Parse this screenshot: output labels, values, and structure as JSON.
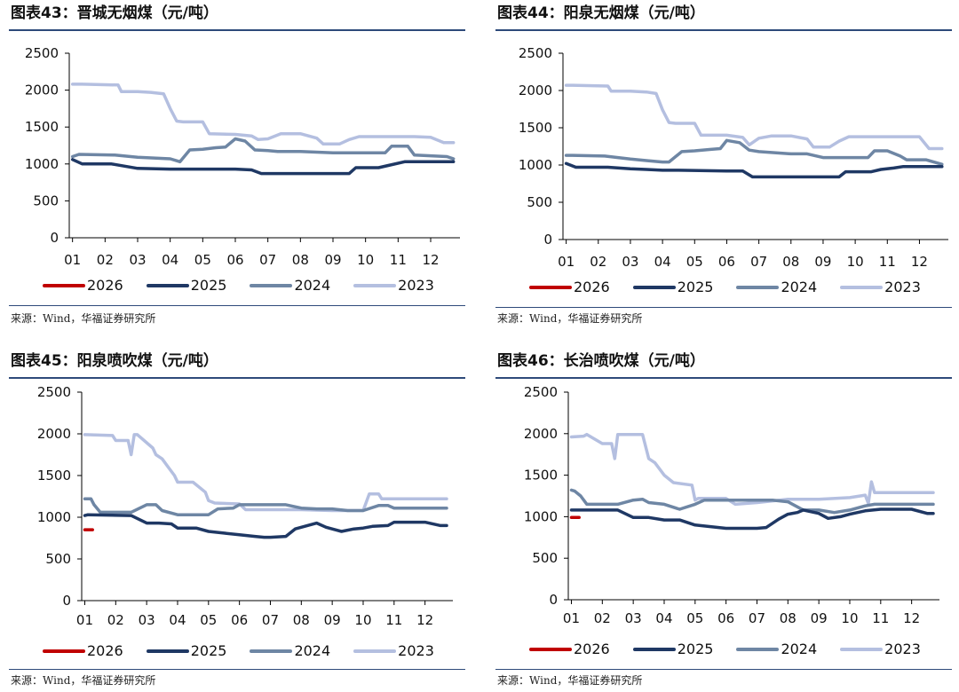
{
  "source": "来源：Wind，华福证券研究所",
  "colors": {
    "2026": "#c00000",
    "2025": "#1f3864",
    "2024": "#6e86a4",
    "2023": "#b4bfe0",
    "rule": "#2e4a7a"
  },
  "chart_data": [
    {
      "type": "line",
      "title": "图表43：晋城无烟煤（元/吨）",
      "xlabel": "",
      "ylabel": "",
      "categories": [
        "01",
        "02",
        "03",
        "04",
        "05",
        "06",
        "07",
        "08",
        "09",
        "10",
        "11",
        "12"
      ],
      "yticks": [
        "0",
        "500",
        "1000",
        "1500",
        "2000",
        "2500"
      ],
      "ylim": [
        0,
        2500
      ],
      "xlim": [
        0.9,
        12.9
      ],
      "legend": "bottom",
      "series": [
        {
          "name": "2026",
          "x": [],
          "values": []
        },
        {
          "name": "2025",
          "x": [
            1.0,
            1.3,
            1.45,
            2.2,
            3.0,
            4.0,
            4.5,
            5.0,
            5.5,
            6.0,
            6.5,
            6.8,
            7.0,
            8.0,
            9.0,
            9.5,
            9.7,
            10.4,
            10.7,
            11.2,
            11.5,
            12.5,
            12.7
          ],
          "values": [
            1060,
            1000,
            1000,
            1000,
            940,
            930,
            930,
            930,
            930,
            930,
            920,
            870,
            870,
            870,
            870,
            870,
            950,
            950,
            980,
            1030,
            1030,
            1030,
            1030
          ]
        },
        {
          "name": "2024",
          "x": [
            1.0,
            1.2,
            2.3,
            3.0,
            3.5,
            4.0,
            4.3,
            4.6,
            5.0,
            5.4,
            5.7,
            6.0,
            6.3,
            6.6,
            7.0,
            7.3,
            8.0,
            8.5,
            9.0,
            9.5,
            10.0,
            10.6,
            10.8,
            11.3,
            11.5,
            12.0,
            12.5,
            12.7
          ],
          "values": [
            1100,
            1130,
            1120,
            1090,
            1080,
            1070,
            1030,
            1190,
            1200,
            1220,
            1230,
            1340,
            1310,
            1190,
            1180,
            1170,
            1170,
            1160,
            1150,
            1150,
            1150,
            1150,
            1240,
            1240,
            1120,
            1110,
            1100,
            1070
          ]
        },
        {
          "name": "2023",
          "x": [
            1.0,
            1.3,
            2.4,
            2.5,
            3.0,
            3.4,
            3.8,
            4.0,
            4.2,
            4.4,
            5.0,
            5.2,
            6.0,
            6.5,
            6.7,
            7.0,
            7.4,
            8.0,
            8.5,
            8.7,
            9.2,
            9.5,
            9.8,
            10.0,
            11.0,
            11.5,
            12.0,
            12.4,
            12.7
          ],
          "values": [
            2080,
            2080,
            2070,
            1980,
            1980,
            1970,
            1950,
            1750,
            1580,
            1570,
            1570,
            1410,
            1400,
            1380,
            1330,
            1340,
            1410,
            1410,
            1350,
            1270,
            1270,
            1330,
            1370,
            1370,
            1370,
            1370,
            1360,
            1290,
            1290
          ]
        }
      ]
    },
    {
      "type": "line",
      "title": "图表44：阳泉无烟煤（元/吨）",
      "xlabel": "",
      "ylabel": "",
      "categories": [
        "01",
        "02",
        "03",
        "04",
        "05",
        "06",
        "07",
        "08",
        "09",
        "10",
        "11",
        "12"
      ],
      "yticks": [
        "0",
        "500",
        "1000",
        "1500",
        "2000",
        "2500"
      ],
      "ylim": [
        0,
        2500
      ],
      "xlim": [
        0.9,
        12.9
      ],
      "legend": "bottom",
      "series": [
        {
          "name": "2026",
          "x": [],
          "values": []
        },
        {
          "name": "2025",
          "x": [
            1.0,
            1.3,
            2.3,
            3.0,
            3.5,
            4.0,
            4.5,
            6.0,
            6.5,
            6.8,
            7.0,
            8.0,
            9.0,
            9.5,
            9.7,
            10.5,
            10.8,
            11.2,
            11.5,
            12.5,
            12.7
          ],
          "values": [
            1020,
            970,
            970,
            950,
            940,
            930,
            930,
            920,
            920,
            840,
            840,
            840,
            840,
            840,
            910,
            910,
            940,
            960,
            980,
            980,
            980
          ]
        },
        {
          "name": "2024",
          "x": [
            1.0,
            1.2,
            2.2,
            3.0,
            3.5,
            4.0,
            4.2,
            4.6,
            5.0,
            5.5,
            5.8,
            6.0,
            6.4,
            6.7,
            7.0,
            8.0,
            8.5,
            9.0,
            9.5,
            10.0,
            10.4,
            10.6,
            11.0,
            11.4,
            11.6,
            12.2,
            12.7
          ],
          "values": [
            1130,
            1130,
            1120,
            1080,
            1060,
            1040,
            1040,
            1180,
            1190,
            1210,
            1220,
            1330,
            1300,
            1200,
            1180,
            1150,
            1150,
            1100,
            1100,
            1100,
            1100,
            1190,
            1190,
            1120,
            1070,
            1070,
            1010
          ]
        },
        {
          "name": "2023",
          "x": [
            1.0,
            1.2,
            2.3,
            2.4,
            3.0,
            3.5,
            3.8,
            4.0,
            4.2,
            4.4,
            5.0,
            5.2,
            6.0,
            6.5,
            6.7,
            7.0,
            7.4,
            8.0,
            8.5,
            8.7,
            9.2,
            9.5,
            9.8,
            10.0,
            11.0,
            11.5,
            12.0,
            12.3,
            12.7
          ],
          "values": [
            2070,
            2070,
            2060,
            1990,
            1990,
            1980,
            1960,
            1740,
            1570,
            1560,
            1560,
            1400,
            1400,
            1370,
            1270,
            1360,
            1390,
            1390,
            1350,
            1240,
            1240,
            1320,
            1380,
            1380,
            1380,
            1380,
            1380,
            1220,
            1220
          ]
        }
      ]
    },
    {
      "type": "line",
      "title": "图表45：阳泉喷吹煤（元/吨）",
      "xlabel": "",
      "ylabel": "",
      "categories": [
        "01",
        "02",
        "03",
        "04",
        "05",
        "06",
        "07",
        "08",
        "09",
        "10",
        "11",
        "12"
      ],
      "yticks": [
        "0",
        "500",
        "1000",
        "1500",
        "2000",
        "2500"
      ],
      "ylim": [
        0,
        2500
      ],
      "xlim": [
        0.9,
        12.9
      ],
      "legend": "bottom",
      "series": [
        {
          "name": "2026",
          "x": [
            1.0,
            1.25
          ],
          "values": [
            850,
            850
          ]
        },
        {
          "name": "2025",
          "x": [
            1.0,
            1.1,
            2.5,
            3.0,
            3.4,
            3.8,
            4.0,
            4.6,
            5.0,
            5.5,
            6.0,
            6.5,
            6.8,
            7.0,
            7.5,
            7.8,
            8.0,
            8.5,
            8.8,
            9.0,
            9.3,
            9.7,
            10.0,
            10.3,
            10.8,
            11.0,
            11.5,
            12.0,
            12.5,
            12.7
          ],
          "values": [
            1020,
            1030,
            1020,
            930,
            930,
            920,
            870,
            870,
            830,
            810,
            790,
            770,
            760,
            760,
            770,
            860,
            880,
            930,
            880,
            860,
            830,
            860,
            870,
            890,
            900,
            940,
            940,
            940,
            900,
            900
          ]
        },
        {
          "name": "2024",
          "x": [
            1.0,
            1.2,
            1.3,
            1.5,
            2.5,
            3.0,
            3.3,
            3.5,
            4.0,
            4.5,
            5.0,
            5.3,
            5.8,
            6.0,
            6.5,
            7.0,
            7.5,
            8.0,
            8.5,
            9.0,
            9.5,
            10.0,
            10.5,
            10.8,
            11.0,
            12.0,
            12.7
          ],
          "values": [
            1220,
            1220,
            1150,
            1060,
            1060,
            1150,
            1150,
            1080,
            1030,
            1030,
            1030,
            1100,
            1110,
            1150,
            1150,
            1150,
            1150,
            1110,
            1100,
            1100,
            1080,
            1080,
            1140,
            1140,
            1110,
            1110,
            1110
          ]
        },
        {
          "name": "2023",
          "x": [
            1.0,
            1.9,
            2.0,
            2.4,
            2.5,
            2.6,
            2.7,
            3.2,
            3.3,
            3.5,
            3.7,
            3.9,
            4.0,
            4.5,
            4.9,
            5.0,
            5.2,
            6.0,
            6.2,
            7.0,
            8.0,
            9.0,
            9.5,
            10.0,
            10.2,
            10.5,
            10.6,
            11.0,
            12.0,
            12.7
          ],
          "values": [
            1990,
            1980,
            1920,
            1920,
            1750,
            1990,
            1990,
            1830,
            1750,
            1700,
            1600,
            1500,
            1420,
            1420,
            1300,
            1200,
            1170,
            1160,
            1090,
            1090,
            1090,
            1080,
            1080,
            1080,
            1280,
            1280,
            1220,
            1220,
            1220,
            1220
          ]
        }
      ]
    },
    {
      "type": "line",
      "title": "图表46：长治喷吹煤（元/吨）",
      "xlabel": "",
      "ylabel": "",
      "categories": [
        "01",
        "02",
        "03",
        "04",
        "05",
        "06",
        "07",
        "08",
        "09",
        "10",
        "11",
        "12"
      ],
      "yticks": [
        "0",
        "500",
        "1000",
        "1500",
        "2000",
        "2500"
      ],
      "ylim": [
        0,
        2500
      ],
      "xlim": [
        0.9,
        12.9
      ],
      "legend": "bottom",
      "series": [
        {
          "name": "2026",
          "x": [
            1.0,
            1.25
          ],
          "values": [
            990,
            990
          ]
        },
        {
          "name": "2025",
          "x": [
            1.0,
            1.5,
            2.5,
            3.0,
            3.5,
            4.0,
            4.5,
            5.0,
            5.5,
            6.0,
            6.5,
            7.0,
            7.3,
            7.7,
            8.0,
            8.3,
            8.5,
            9.0,
            9.3,
            9.7,
            10.0,
            10.5,
            11.0,
            11.5,
            12.0,
            12.5,
            12.7
          ],
          "values": [
            1080,
            1080,
            1080,
            990,
            990,
            960,
            960,
            900,
            880,
            860,
            860,
            860,
            870,
            970,
            1030,
            1050,
            1080,
            1040,
            980,
            1000,
            1030,
            1070,
            1090,
            1090,
            1090,
            1040,
            1040
          ]
        },
        {
          "name": "2024",
          "x": [
            1.0,
            1.1,
            1.3,
            1.5,
            2.5,
            3.0,
            3.3,
            3.5,
            4.0,
            4.5,
            5.0,
            5.3,
            6.0,
            6.5,
            7.0,
            7.5,
            8.0,
            8.5,
            9.0,
            9.5,
            10.0,
            10.5,
            10.8,
            11.0,
            12.0,
            12.7
          ],
          "values": [
            1320,
            1310,
            1250,
            1150,
            1150,
            1200,
            1210,
            1170,
            1150,
            1090,
            1150,
            1200,
            1200,
            1200,
            1200,
            1200,
            1180,
            1080,
            1080,
            1050,
            1080,
            1130,
            1150,
            1150,
            1150,
            1150
          ]
        },
        {
          "name": "2023",
          "x": [
            1.0,
            1.4,
            1.5,
            2.0,
            2.3,
            2.4,
            2.5,
            2.6,
            2.8,
            3.3,
            3.5,
            3.7,
            4.0,
            4.3,
            4.9,
            5.0,
            5.1,
            6.0,
            6.3,
            7.0,
            8.0,
            9.0,
            10.0,
            10.5,
            10.6,
            10.7,
            10.8,
            11.0,
            12.0,
            12.7
          ],
          "values": [
            1960,
            1970,
            1990,
            1880,
            1880,
            1700,
            1990,
            1990,
            1990,
            1990,
            1700,
            1650,
            1500,
            1410,
            1380,
            1200,
            1220,
            1220,
            1150,
            1170,
            1210,
            1210,
            1230,
            1260,
            1160,
            1420,
            1290,
            1290,
            1290,
            1290
          ]
        }
      ]
    }
  ]
}
